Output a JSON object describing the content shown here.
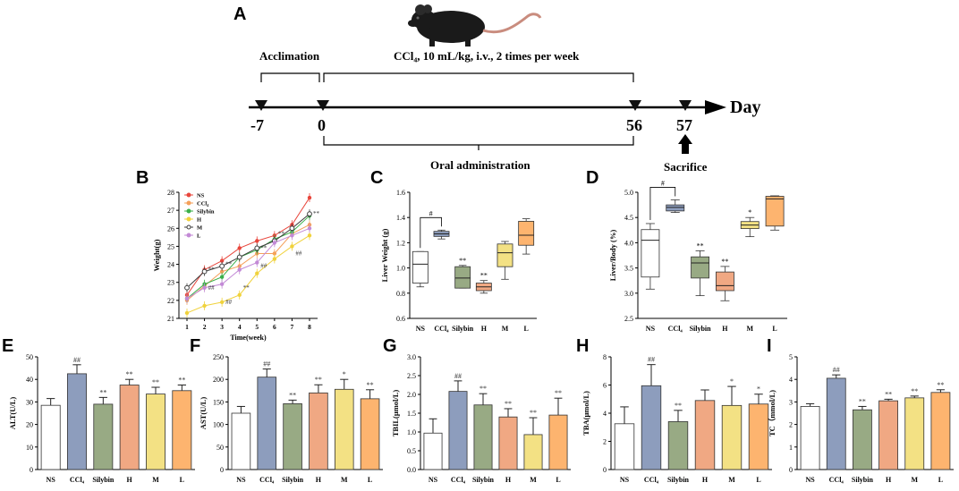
{
  "panels": {
    "A": "A",
    "B": "B",
    "C": "C",
    "D": "D",
    "E": "E",
    "F": "F",
    "G": "G",
    "H": "H",
    "I": "I"
  },
  "timeline": {
    "acclimation": "Acclimation",
    "treatment": "CCl₄, 10 mL/kg, i.v., 2 times per week",
    "oral": "Oral administration",
    "sacrifice": "Sacrifice",
    "axis_label": "Day",
    "days": [
      "-7",
      "0",
      "56",
      "57"
    ]
  },
  "colors": {
    "NS": "#ffffff",
    "CCl4": "#8d9dbd",
    "Silybin": "#98aa84",
    "H": "#f0a883",
    "M": "#f3e184",
    "L": "#fdb46f"
  },
  "chart_data": [
    {
      "id": "B",
      "type": "line",
      "title": "",
      "xlabel": "Time(week)",
      "ylabel": "Weight(g)",
      "ylim": [
        21,
        28
      ],
      "x": [
        1,
        2,
        3,
        4,
        5,
        6,
        7,
        8
      ],
      "series": [
        {
          "name": "NS",
          "color": "#e8463c",
          "values": [
            22.3,
            23.7,
            24.2,
            24.9,
            25.3,
            25.6,
            26.2,
            27.7
          ]
        },
        {
          "name": "CCl4",
          "color": "#f5a05a",
          "values": [
            22.0,
            22.8,
            23.6,
            23.9,
            24.6,
            24.6,
            25.7,
            26.2
          ]
        },
        {
          "name": "Silybin",
          "color": "#3cb04a",
          "values": [
            22.1,
            22.9,
            23.3,
            24.4,
            24.8,
            25.4,
            25.8,
            26.7
          ]
        },
        {
          "name": "H",
          "color": "#f0d23c",
          "values": [
            21.3,
            21.7,
            21.9,
            22.3,
            23.5,
            24.3,
            25.0,
            25.6
          ]
        },
        {
          "name": "M",
          "color": "#3c3c3c",
          "values": [
            22.7,
            23.6,
            23.9,
            24.4,
            24.9,
            25.3,
            26.0,
            26.8
          ]
        },
        {
          "name": "L",
          "color": "#c38ad6",
          "values": [
            22.1,
            22.7,
            22.9,
            23.7,
            24.1,
            25.2,
            25.6,
            26.0
          ]
        }
      ],
      "legend": [
        "NS",
        "CCl₄",
        "Silybin",
        "H",
        "M",
        "L"
      ],
      "yticks": [
        "21",
        "22",
        "23",
        "24",
        "25",
        "26",
        "27",
        "28"
      ],
      "xticks": [
        "1",
        "2",
        "3",
        "4",
        "5",
        "6",
        "7",
        "8"
      ],
      "annotations": [
        "##",
        "**",
        "##",
        "**",
        "**",
        "##",
        "**",
        "**",
        "##",
        "**"
      ]
    },
    {
      "id": "C",
      "type": "box",
      "ylabel": "Liver Weight (g)",
      "ylim": [
        0.6,
        1.6
      ],
      "yticks": [
        "0.6",
        "0.8",
        "1.0",
        "1.2",
        "1.4",
        "1.6"
      ],
      "categories": [
        "NS",
        "CCl₄",
        "Silybin",
        "H",
        "M",
        "L"
      ],
      "boxes": [
        {
          "min": 0.85,
          "q1": 0.88,
          "median": 1.03,
          "q3": 1.13,
          "max": 1.13
        },
        {
          "min": 1.23,
          "q1": 1.25,
          "median": 1.27,
          "q3": 1.29,
          "max": 1.3
        },
        {
          "min": 0.84,
          "q1": 0.84,
          "median": 0.92,
          "q3": 1.01,
          "max": 1.02
        },
        {
          "min": 0.8,
          "q1": 0.82,
          "median": 0.85,
          "q3": 0.88,
          "max": 0.9
        },
        {
          "min": 0.91,
          "q1": 1.01,
          "median": 1.12,
          "q3": 1.19,
          "max": 1.21
        },
        {
          "min": 1.11,
          "q1": 1.18,
          "median": 1.26,
          "q3": 1.37,
          "max": 1.39
        }
      ],
      "marks": [
        "",
        "",
        "**",
        "**",
        "",
        ""
      ],
      "bracket": "#"
    },
    {
      "id": "D",
      "type": "box",
      "ylabel": "Liver/Body (%)",
      "ylim": [
        2.5,
        5.0
      ],
      "yticks": [
        "2.5",
        "3.0",
        "3.5",
        "4.0",
        "4.5",
        "5.0"
      ],
      "categories": [
        "NS",
        "CCl₄",
        "Silybin",
        "H",
        "M",
        "L"
      ],
      "boxes": [
        {
          "min": 3.08,
          "q1": 3.32,
          "median": 4.05,
          "q3": 4.26,
          "max": 4.38
        },
        {
          "min": 4.6,
          "q1": 4.63,
          "median": 4.7,
          "q3": 4.75,
          "max": 4.85
        },
        {
          "min": 2.95,
          "q1": 3.3,
          "median": 3.6,
          "q3": 3.72,
          "max": 3.84
        },
        {
          "min": 2.85,
          "q1": 3.05,
          "median": 3.15,
          "q3": 3.42,
          "max": 3.53
        },
        {
          "min": 4.12,
          "q1": 4.28,
          "median": 4.35,
          "q3": 4.42,
          "max": 4.5
        },
        {
          "min": 4.25,
          "q1": 4.33,
          "median": 4.87,
          "q3": 4.92,
          "max": 4.93
        }
      ],
      "marks": [
        "",
        "",
        "**",
        "**",
        "*",
        ""
      ],
      "bracket": "#"
    },
    {
      "id": "E",
      "type": "bar",
      "ylabel": "ALT(U/L)",
      "ylim": [
        0,
        50
      ],
      "yticks": [
        "0",
        "10",
        "20",
        "30",
        "40",
        "50"
      ],
      "categories": [
        "NS",
        "CCl₄",
        "Silybin",
        "H",
        "M",
        "L"
      ],
      "values": [
        28.5,
        42.5,
        29.0,
        37.5,
        33.5,
        35.0
      ],
      "errors": [
        3.0,
        4.0,
        3.0,
        2.5,
        3.0,
        2.5
      ],
      "marks": [
        "",
        "##",
        "**",
        "**",
        "**",
        "**"
      ]
    },
    {
      "id": "F",
      "type": "bar",
      "ylabel": "AST(U/L)",
      "ylim": [
        0,
        250
      ],
      "yticks": [
        "0",
        "50",
        "100",
        "150",
        "200",
        "250"
      ],
      "categories": [
        "NS",
        "CCl₄",
        "Silybin",
        "H",
        "M",
        "L"
      ],
      "values": [
        125,
        205,
        146,
        170,
        178,
        157
      ],
      "errors": [
        15,
        18,
        8,
        18,
        22,
        20
      ],
      "marks": [
        "",
        "##",
        "**",
        "**",
        "*",
        "**"
      ]
    },
    {
      "id": "G",
      "type": "bar",
      "ylabel": "TBIL(μmol/L)",
      "ylim": [
        0,
        3.0
      ],
      "yticks": [
        "0.0",
        "0.5",
        "1.0",
        "1.5",
        "2.0",
        "2.5",
        "3.0"
      ],
      "categories": [
        "NS",
        "CCl₄",
        "Silybin",
        "H",
        "M",
        "L"
      ],
      "values": [
        0.97,
        2.08,
        1.72,
        1.4,
        0.93,
        1.45
      ],
      "errors": [
        0.38,
        0.28,
        0.3,
        0.22,
        0.45,
        0.45
      ],
      "marks": [
        "",
        "##",
        "**",
        "**",
        "**",
        "**"
      ]
    },
    {
      "id": "H",
      "type": "bar",
      "ylabel": "TBA(μmol/L)",
      "ylim": [
        0,
        8
      ],
      "yticks": [
        "0",
        "2",
        "4",
        "6",
        "8"
      ],
      "categories": [
        "NS",
        "CCl₄",
        "Silybin",
        "H",
        "M",
        "L"
      ],
      "values": [
        3.25,
        5.95,
        3.4,
        4.9,
        4.55,
        4.65
      ],
      "errors": [
        1.2,
        1.5,
        0.8,
        0.75,
        1.35,
        0.7
      ],
      "marks": [
        "",
        "##",
        "**",
        "",
        "*",
        "*"
      ]
    },
    {
      "id": "I",
      "type": "bar",
      "ylabel": "TC（mmol/L)",
      "ylim": [
        0,
        5
      ],
      "yticks": [
        "0",
        "1",
        "2",
        "3",
        "4",
        "5"
      ],
      "categories": [
        "NS",
        "CCl₄",
        "Silybin",
        "H",
        "M",
        "L"
      ],
      "values": [
        2.8,
        4.05,
        2.65,
        3.05,
        3.18,
        3.42
      ],
      "errors": [
        0.12,
        0.15,
        0.15,
        0.07,
        0.08,
        0.12
      ],
      "marks": [
        "",
        "##",
        "**",
        "**",
        "**",
        "**"
      ]
    }
  ]
}
